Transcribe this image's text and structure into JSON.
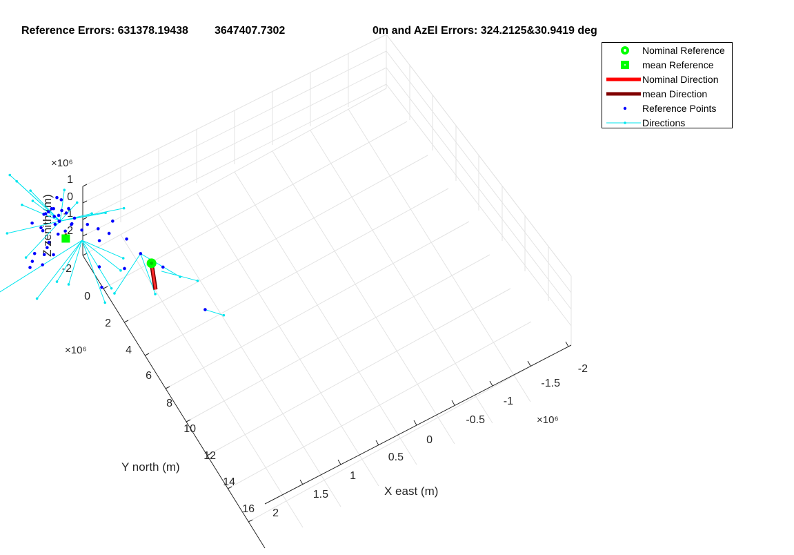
{
  "title": {
    "part1": "Reference Errors: 631378.19438",
    "part2": "3647407.7302",
    "part3": "0m and AzEl Errors: 324.2125&30.9419 deg"
  },
  "chart_data": {
    "type": "scatter",
    "projection": "3d",
    "grid": true,
    "legend_position": "top-right",
    "axes": {
      "x": {
        "label": "X east (m)",
        "ticks": [
          "-2",
          "-1.5",
          "-1",
          "-0.5",
          "0",
          "0.5",
          "1",
          "1.5"
        ],
        "range": [
          -2,
          2
        ],
        "multiplier": "×10⁶"
      },
      "y": {
        "label": "Y north (m)",
        "ticks": [
          "-2",
          "0",
          "2",
          "4",
          "6",
          "8",
          "10",
          "12",
          "14",
          "16"
        ],
        "range": [
          -2,
          16
        ],
        "multiplier": "×10⁶"
      },
      "z": {
        "label": "Z zenith (m)",
        "ticks": [
          "1",
          "0",
          "-1",
          "-2"
        ],
        "range": [
          -2.5,
          1
        ],
        "multiplier": "×10⁶"
      }
    },
    "legend": [
      {
        "label": "Nominal Reference",
        "marker": "circle",
        "color": "#00ff00"
      },
      {
        "label": "mean Reference",
        "marker": "square",
        "color": "#00ff00"
      },
      {
        "label": "Nominal Direction",
        "marker": "line",
        "color": "#ff0000"
      },
      {
        "label": "mean Direction",
        "marker": "line",
        "color": "#800000"
      },
      {
        "label": "Reference Points",
        "marker": "dot",
        "color": "#0000ff"
      },
      {
        "label": "Directions",
        "marker": "line-dot",
        "color": "#00e5ee"
      }
    ],
    "series": [
      {
        "name": "Nominal Reference",
        "points": [
          {
            "x": 0.85,
            "y": 5.3,
            "z": 0.0
          }
        ]
      },
      {
        "name": "mean Reference",
        "points": [
          {
            "x": 0.2,
            "y": 1.75,
            "z": -0.5
          }
        ]
      },
      {
        "name": "Nominal Direction",
        "segment": [
          {
            "x": 0.85,
            "y": 5.3,
            "z": 0.0
          },
          {
            "x": 0.73,
            "y": 6.6,
            "z": 0.0
          }
        ]
      },
      {
        "name": "mean Direction",
        "segment": [
          {
            "x": 0.2,
            "y": 1.75,
            "z": -0.5
          },
          {
            "x": 0.2,
            "y": 1.75,
            "z": -0.2
          }
        ]
      },
      {
        "name": "Reference Points",
        "points": [
          {
            "x": 0.25,
            "y": 0.5,
            "z": 0.6
          },
          {
            "x": 0.18,
            "y": 0.7,
            "z": 0.3
          },
          {
            "x": 0.22,
            "y": 0.9,
            "z": 0.0
          },
          {
            "x": 0.1,
            "y": 0.8,
            "z": 0.4
          },
          {
            "x": 0.15,
            "y": 1.0,
            "z": 0.2
          },
          {
            "x": 0.3,
            "y": 0.6,
            "z": -0.2
          },
          {
            "x": 0.05,
            "y": 0.9,
            "z": 0.5
          },
          {
            "x": 0.2,
            "y": 1.1,
            "z": -0.1
          },
          {
            "x": 0.12,
            "y": 1.3,
            "z": 0.1
          },
          {
            "x": 0.28,
            "y": 1.2,
            "z": 0.3
          },
          {
            "x": 0.0,
            "y": 1.0,
            "z": -0.3
          },
          {
            "x": 0.35,
            "y": 0.9,
            "z": 0.1
          },
          {
            "x": 0.08,
            "y": 0.5,
            "z": 0.0
          },
          {
            "x": 0.24,
            "y": 1.4,
            "z": -0.5
          },
          {
            "x": -0.05,
            "y": 1.2,
            "z": 0.2
          },
          {
            "x": 0.3,
            "y": 1.6,
            "z": 0.0
          },
          {
            "x": 0.15,
            "y": 1.5,
            "z": 0.4
          },
          {
            "x": 0.32,
            "y": 0.4,
            "z": 0.2
          },
          {
            "x": 0.02,
            "y": 1.45,
            "z": -0.6
          },
          {
            "x": 0.2,
            "y": 0.35,
            "z": -0.1
          },
          {
            "x": 0.4,
            "y": 1.1,
            "z": -0.4
          },
          {
            "x": -0.1,
            "y": 0.7,
            "z": 0.1
          },
          {
            "x": 0.26,
            "y": 1.85,
            "z": 0.3
          },
          {
            "x": 0.1,
            "y": 1.75,
            "z": 0.0
          },
          {
            "x": -0.2,
            "y": 1.7,
            "z": -0.5
          },
          {
            "x": -0.25,
            "y": 1.85,
            "z": -0.7
          },
          {
            "x": -0.3,
            "y": 2.0,
            "z": -0.8
          },
          {
            "x": -0.1,
            "y": 1.9,
            "z": -0.6
          },
          {
            "x": -0.15,
            "y": 2.1,
            "z": -0.9
          },
          {
            "x": -0.05,
            "y": 1.8,
            "z": -0.4
          },
          {
            "x": 0.0,
            "y": 2.05,
            "z": -0.7
          },
          {
            "x": 0.35,
            "y": 2.2,
            "z": 0.1
          },
          {
            "x": 0.45,
            "y": 2.0,
            "z": 0.0
          },
          {
            "x": 0.55,
            "y": 2.3,
            "z": -0.2
          },
          {
            "x": 0.5,
            "y": 2.8,
            "z": -0.3
          },
          {
            "x": 0.6,
            "y": 3.0,
            "z": 0.1
          },
          {
            "x": 0.7,
            "y": 2.6,
            "z": 0.2
          },
          {
            "x": 0.75,
            "y": 3.6,
            "z": 0.0
          },
          {
            "x": 0.8,
            "y": 4.6,
            "z": 0.0
          },
          {
            "x": 0.92,
            "y": 5.9,
            "z": 0.2
          },
          {
            "x": 0.3,
            "y": 4.3,
            "z": 0.1
          },
          {
            "x": 0.2,
            "y": 5.3,
            "z": 0.1
          },
          {
            "x": 0.55,
            "y": 4.9,
            "z": 0.0
          },
          {
            "x": 1.1,
            "y": 8.7,
            "z": 0.0
          }
        ]
      },
      {
        "name": "Directions",
        "segments": [
          [
            {
              "x": 0.2,
              "y": 1.2,
              "z": 0.0
            },
            {
              "x": -0.1,
              "y": -1.5,
              "z": 0.8
            }
          ],
          [
            {
              "x": 0.2,
              "y": 1.2,
              "z": 0.0
            },
            {
              "x": -0.05,
              "y": -1.2,
              "z": 0.6
            }
          ],
          [
            {
              "x": 0.2,
              "y": 1.2,
              "z": 0.0
            },
            {
              "x": 0.05,
              "y": -0.6,
              "z": 0.4
            }
          ],
          [
            {
              "x": 0.2,
              "y": 1.2,
              "z": 0.0
            },
            {
              "x": -0.1,
              "y": -0.3,
              "z": 0.2
            }
          ],
          [
            {
              "x": 0.2,
              "y": 1.2,
              "z": 0.0
            },
            {
              "x": 0.0,
              "y": 0.0,
              "z": 0.5
            }
          ],
          [
            {
              "x": 0.2,
              "y": 1.2,
              "z": 0.0
            },
            {
              "x": 0.4,
              "y": 0.1,
              "z": 0.3
            }
          ],
          [
            {
              "x": 0.2,
              "y": 1.2,
              "z": 0.0
            },
            {
              "x": 0.5,
              "y": 0.6,
              "z": -0.2
            }
          ],
          [
            {
              "x": 0.2,
              "y": 1.2,
              "z": 0.0
            },
            {
              "x": -0.4,
              "y": 0.5,
              "z": 0.0
            }
          ],
          [
            {
              "x": 0.2,
              "y": 1.2,
              "z": 0.0
            },
            {
              "x": 0.6,
              "y": 1.3,
              "z": -0.4
            }
          ],
          [
            {
              "x": 0.2,
              "y": 1.2,
              "z": 0.0
            },
            {
              "x": -0.3,
              "y": 1.6,
              "z": -0.6
            }
          ],
          [
            {
              "x": 0.2,
              "y": 1.2,
              "z": 0.0
            },
            {
              "x": 0.7,
              "y": 1.9,
              "z": 0.0
            }
          ],
          [
            {
              "x": 0.2,
              "y": 1.2,
              "z": 0.0
            },
            {
              "x": 0.9,
              "y": 2.2,
              "z": 0.1
            }
          ],
          [
            {
              "x": 0.3,
              "y": 2.6,
              "z": 0.0
            },
            {
              "x": -1.6,
              "y": 3.3,
              "z": 0.0
            }
          ],
          [
            {
              "x": 0.3,
              "y": 2.6,
              "z": 0.0
            },
            {
              "x": -0.5,
              "y": 4.2,
              "z": 0.0
            }
          ],
          [
            {
              "x": 0.3,
              "y": 2.6,
              "z": 0.0
            },
            {
              "x": -0.1,
              "y": 4.3,
              "z": 0.0
            }
          ],
          [
            {
              "x": 0.3,
              "y": 2.6,
              "z": 0.0
            },
            {
              "x": 0.5,
              "y": 4.9,
              "z": 0.0
            }
          ],
          [
            {
              "x": 0.3,
              "y": 2.6,
              "z": 0.0
            },
            {
              "x": 0.3,
              "y": 5.5,
              "z": 0.0
            }
          ],
          [
            {
              "x": 0.3,
              "y": 2.6,
              "z": 0.0
            },
            {
              "x": 0.15,
              "y": 6.0,
              "z": 0.0
            }
          ],
          [
            {
              "x": 0.3,
              "y": 2.6,
              "z": 0.0
            },
            {
              "x": 0.6,
              "y": 4.4,
              "z": 0.0
            }
          ],
          [
            {
              "x": 0.3,
              "y": 2.6,
              "z": 0.0
            },
            {
              "x": -0.2,
              "y": 3.9,
              "z": 0.0
            }
          ],
          [
            {
              "x": 0.8,
              "y": 4.6,
              "z": 0.0
            },
            {
              "x": 0.3,
              "y": 5.8,
              "z": 0.0
            }
          ],
          [
            {
              "x": 0.8,
              "y": 4.6,
              "z": 0.0
            },
            {
              "x": 0.7,
              "y": 6.8,
              "z": 0.0
            }
          ],
          [
            {
              "x": 0.8,
              "y": 4.6,
              "z": 0.0
            },
            {
              "x": 1.05,
              "y": 6.6,
              "z": 0.0
            }
          ],
          [
            {
              "x": 0.9,
              "y": 5.9,
              "z": 0.0
            },
            {
              "x": 1.2,
              "y": 7.2,
              "z": 0.0
            }
          ],
          [
            {
              "x": 1.1,
              "y": 8.7,
              "z": 0.0
            },
            {
              "x": 1.25,
              "y": 9.4,
              "z": 0.0
            }
          ]
        ]
      }
    ]
  }
}
